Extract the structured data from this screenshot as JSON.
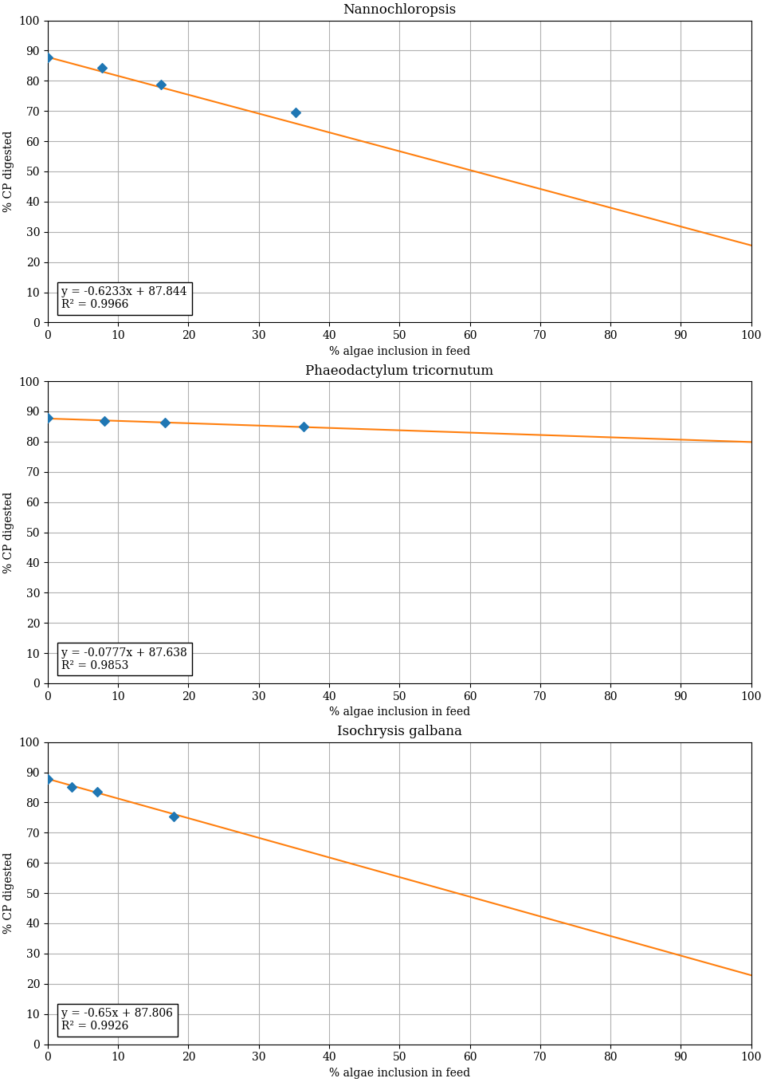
{
  "chart_data": [
    {
      "type": "scatter",
      "title": "Nannochloropsis",
      "x_label": "% algae inclusion in feed",
      "y_label": "% CP digested",
      "xlim": [
        0,
        100
      ],
      "ylim": [
        0,
        100
      ],
      "xticks": [
        0,
        10,
        20,
        30,
        40,
        50,
        60,
        70,
        80,
        90,
        100
      ],
      "yticks": [
        0,
        10,
        20,
        30,
        40,
        50,
        60,
        70,
        80,
        90,
        100
      ],
      "grid": true,
      "series": [
        {
          "type": "scatter",
          "marker": "diamond",
          "x": [
            0,
            7.7,
            16.1,
            35.2
          ],
          "values": [
            87.8,
            84.3,
            78.8,
            69.6
          ]
        },
        {
          "type": "line",
          "line_style": "solid",
          "x": [
            0,
            100
          ],
          "values": [
            87.844,
            25.514
          ]
        }
      ],
      "annotations": [
        "y = -0.6233x + 87.844",
        "R² = 0.9966"
      ]
    },
    {
      "type": "scatter",
      "title": "Phaeodactylum tricornutum",
      "x_label": "% algae inclusion in feed",
      "y_label": "% CP digested",
      "xlim": [
        0,
        100
      ],
      "ylim": [
        0,
        100
      ],
      "xticks": [
        0,
        10,
        20,
        30,
        40,
        50,
        60,
        70,
        80,
        90,
        100
      ],
      "yticks": [
        0,
        10,
        20,
        30,
        40,
        50,
        60,
        70,
        80,
        90,
        100
      ],
      "grid": true,
      "series": [
        {
          "type": "scatter",
          "marker": "diamond",
          "x": [
            0,
            8.1,
            16.7,
            36.4
          ],
          "values": [
            87.8,
            86.9,
            86.2,
            84.9
          ]
        },
        {
          "type": "line",
          "line_style": "solid",
          "x": [
            0,
            100
          ],
          "values": [
            87.638,
            79.868
          ]
        }
      ],
      "annotations": [
        "y = -0.0777x + 87.638",
        "R² = 0.9853"
      ]
    },
    {
      "type": "scatter",
      "title": "Isochrysis galbana",
      "x_label": "% algae inclusion in feed",
      "y_label": "% CP digested",
      "xlim": [
        0,
        100
      ],
      "ylim": [
        0,
        100
      ],
      "xticks": [
        0,
        10,
        20,
        30,
        40,
        50,
        60,
        70,
        80,
        90,
        100
      ],
      "yticks": [
        0,
        10,
        20,
        30,
        40,
        50,
        60,
        70,
        80,
        90,
        100
      ],
      "grid": true,
      "series": [
        {
          "type": "scatter",
          "marker": "diamond",
          "x": [
            0,
            3.4,
            7.0,
            17.9
          ],
          "values": [
            87.8,
            85.0,
            83.6,
            75.3
          ]
        },
        {
          "type": "line",
          "line_style": "solid",
          "x": [
            0,
            100
          ],
          "values": [
            87.806,
            22.806
          ]
        }
      ],
      "annotations": [
        "y = -0.65x + 87.806",
        "R² = 0.9926"
      ]
    }
  ]
}
